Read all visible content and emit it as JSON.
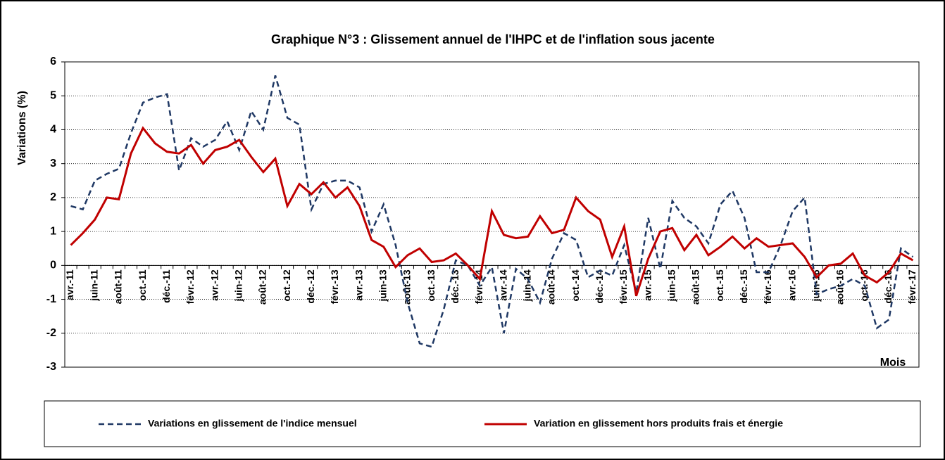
{
  "chart_data": {
    "type": "line",
    "title": "Graphique N°3 : Glissement annuel de l'IHPC et de l'inflation sous jacente",
    "y_label": "Variations (%)",
    "x_label": "Mois",
    "categories": [
      "avr.-11",
      null,
      "juin-11",
      null,
      "août-11",
      null,
      "oct.-11",
      null,
      "déc.-11",
      null,
      "févr.-12",
      null,
      "avr.-12",
      null,
      "juin-12",
      null,
      "août-12",
      null,
      "oct.-12",
      null,
      "déc.-12",
      null,
      "févr.-13",
      null,
      "avr.-13",
      null,
      "juin-13",
      null,
      "août-13",
      null,
      "oct.-13",
      null,
      "déc.-13",
      null,
      "févr.-14",
      null,
      "avr.-14",
      null,
      "juin-14",
      null,
      "août-14",
      null,
      "oct.-14",
      null,
      "déc.-14",
      null,
      "févr.-15",
      null,
      "avr.-15",
      null,
      "juin-15",
      null,
      "août-15",
      null,
      "oct.-15",
      null,
      "déc.-15",
      null,
      "févr.-16",
      null,
      "avr.-16",
      null,
      "juin-16",
      null,
      "août-16",
      null,
      "oct.-16",
      null,
      "déc.-16",
      null,
      "févr.-17"
    ],
    "series": [
      {
        "name": "Variations en glissement de l'indice mensuel",
        "color": "#1f3864",
        "dash": true,
        "values": [
          1.75,
          1.65,
          2.5,
          2.7,
          2.85,
          3.9,
          4.8,
          4.95,
          5.05,
          2.8,
          3.75,
          3.5,
          3.7,
          4.25,
          3.4,
          4.55,
          4.0,
          5.6,
          4.35,
          4.15,
          1.65,
          2.4,
          2.5,
          2.5,
          2.3,
          1.0,
          1.8,
          0.6,
          -1.1,
          -2.3,
          -2.4,
          -1.3,
          0.15,
          0.0,
          -0.6,
          -0.05,
          -2.0,
          -0.1,
          -0.4,
          -1.1,
          0.2,
          0.95,
          0.75,
          -0.35,
          -0.15,
          -0.3,
          0.6,
          -0.8,
          1.4,
          -0.1,
          1.9,
          1.4,
          1.15,
          0.65,
          1.8,
          2.2,
          1.4,
          -0.2,
          -0.2,
          0.6,
          1.6,
          2.0,
          -0.85,
          -0.7,
          -0.6,
          -0.4,
          -0.6,
          -1.85,
          -1.6,
          0.5,
          0.25
        ]
      },
      {
        "name": "Variation en glissement hors produits frais et énergie",
        "color": "#c00000",
        "dash": false,
        "values": [
          0.6,
          0.95,
          1.35,
          2.0,
          1.95,
          3.3,
          4.05,
          3.6,
          3.35,
          3.3,
          3.55,
          3.0,
          3.4,
          3.5,
          3.7,
          3.2,
          2.75,
          3.15,
          1.75,
          2.4,
          2.1,
          2.45,
          2.0,
          2.3,
          1.75,
          0.75,
          0.55,
          -0.05,
          0.3,
          0.5,
          0.1,
          0.15,
          0.35,
          0.0,
          -0.4,
          1.6,
          0.9,
          0.8,
          0.85,
          1.45,
          0.95,
          1.05,
          2.0,
          1.6,
          1.35,
          0.25,
          1.15,
          -0.9,
          0.2,
          1.0,
          1.1,
          0.45,
          0.9,
          0.3,
          0.55,
          0.85,
          0.5,
          0.8,
          0.55,
          0.6,
          0.65,
          0.25,
          -0.35,
          0.0,
          0.05,
          0.35,
          -0.3,
          -0.5,
          -0.2,
          0.35,
          0.15
        ]
      }
    ],
    "ylim": [
      -3,
      6
    ],
    "yticks": [
      -3,
      -2,
      -1,
      0,
      1,
      2,
      3,
      4,
      5,
      6
    ],
    "grid": true,
    "legend": "bottom"
  }
}
